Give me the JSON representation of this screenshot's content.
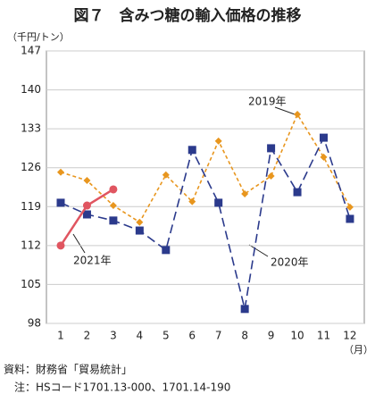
{
  "chart_data": {
    "type": "line",
    "title": "図７　含みつ糖の輸入価格の推移",
    "y_axis_label": "（千円/トン）",
    "x_axis_label": "（月）",
    "categories": [
      "1",
      "2",
      "3",
      "4",
      "5",
      "6",
      "7",
      "8",
      "9",
      "10",
      "11",
      "12"
    ],
    "series": [
      {
        "name": "2019年",
        "color": "#e8961e",
        "marker": "diamond",
        "dash": "4,3",
        "values": [
          125.2,
          123.7,
          119.2,
          116.2,
          124.7,
          119.9,
          130.8,
          121.3,
          124.5,
          135.6,
          127.9,
          118.9
        ]
      },
      {
        "name": "2020年",
        "color": "#2b3a8c",
        "marker": "square",
        "dash": "10,5",
        "values": [
          119.7,
          117.6,
          116.5,
          114.7,
          111.2,
          129.2,
          119.7,
          100.6,
          129.5,
          121.6,
          131.4,
          116.8
        ]
      },
      {
        "name": "2021年",
        "color": "#e05560",
        "marker": "circle",
        "dash": "",
        "values": [
          112,
          119.2,
          122.1,
          null,
          null,
          null,
          null,
          null,
          null,
          null,
          null,
          null
        ]
      }
    ],
    "ylim": [
      98,
      147
    ],
    "yticks": [
      98,
      105,
      112,
      119,
      126,
      133,
      140,
      147
    ],
    "grid": true,
    "source": [
      "資料：財務省「貿易統計」",
      "　注：HSコード1701.13-000、1701.14-190"
    ]
  }
}
